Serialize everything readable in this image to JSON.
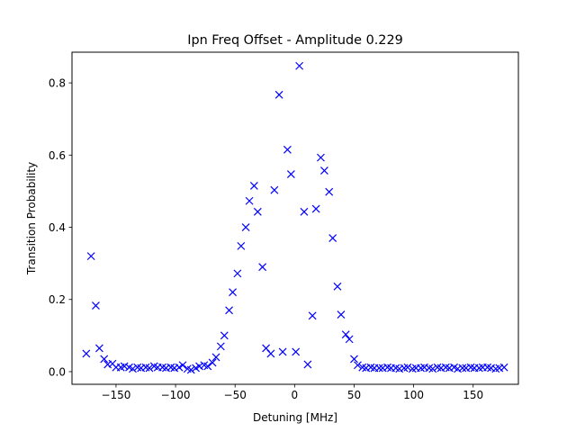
{
  "chart_data": {
    "type": "scatter",
    "title": "Ipn Freq Offset - Amplitude 0.229",
    "xlabel": "Detuning [MHz]",
    "ylabel": "Transition Probability",
    "xlim": [
      -187,
      188
    ],
    "ylim": [
      -0.035,
      0.885
    ],
    "xticks": [
      -150,
      -100,
      -50,
      0,
      50,
      100,
      150
    ],
    "xtick_labels": [
      "−150",
      "−100",
      "−50",
      "0",
      "50",
      "100",
      "150"
    ],
    "yticks": [
      0.0,
      0.2,
      0.4,
      0.6,
      0.8
    ],
    "ytick_labels": [
      "0.0",
      "0.2",
      "0.4",
      "0.6",
      "0.8"
    ],
    "grid": false,
    "marker": "x",
    "marker_color": "#0000ff",
    "series": [
      {
        "x": [
          -175,
          -171,
          -167,
          -164,
          -160,
          -157,
          -153,
          -150,
          -146,
          -143,
          -139,
          -136,
          -132,
          -129,
          -125,
          -122,
          -118,
          -115,
          -111,
          -108,
          -104,
          -101,
          -97,
          -94,
          -90,
          -87,
          -83,
          -80,
          -76,
          -73,
          -69,
          -66,
          -62,
          -59,
          -55,
          -52,
          -48,
          -45,
          -41,
          -38,
          -34,
          -31,
          -27,
          -24,
          -20,
          -17,
          -13,
          -10,
          -6,
          -3,
          1,
          4,
          8,
          11,
          15,
          18,
          22,
          25,
          29,
          32,
          36,
          39,
          43,
          46,
          50,
          53,
          57,
          60,
          64,
          67,
          71,
          74,
          78,
          81,
          85,
          88,
          92,
          95,
          99,
          102,
          106,
          109,
          113,
          116,
          120,
          123,
          127,
          130,
          134,
          137,
          141,
          144,
          148,
          151,
          155,
          158,
          162,
          165,
          169,
          172,
          176
        ],
        "y": [
          0.05,
          0.32,
          0.183,
          0.065,
          0.035,
          0.02,
          0.022,
          0.012,
          0.012,
          0.015,
          0.012,
          0.008,
          0.012,
          0.01,
          0.012,
          0.01,
          0.015,
          0.012,
          0.012,
          0.01,
          0.012,
          0.01,
          0.012,
          0.018,
          0.008,
          0.005,
          0.01,
          0.015,
          0.018,
          0.015,
          0.025,
          0.04,
          0.07,
          0.1,
          0.17,
          0.22,
          0.272,
          0.348,
          0.4,
          0.473,
          0.515,
          0.443,
          0.29,
          0.065,
          0.05,
          0.503,
          0.767,
          0.055,
          0.615,
          0.547,
          0.055,
          0.847,
          0.443,
          0.02,
          0.155,
          0.451,
          0.593,
          0.557,
          0.498,
          0.37,
          0.236,
          0.158,
          0.103,
          0.09,
          0.035,
          0.018,
          0.012,
          0.01,
          0.012,
          0.01,
          0.01,
          0.01,
          0.012,
          0.01,
          0.01,
          0.008,
          0.01,
          0.012,
          0.008,
          0.01,
          0.01,
          0.012,
          0.01,
          0.008,
          0.012,
          0.01,
          0.012,
          0.01,
          0.012,
          0.008,
          0.01,
          0.01,
          0.012,
          0.01,
          0.01,
          0.012,
          0.012,
          0.01,
          0.008,
          0.01,
          0.012
        ]
      }
    ]
  }
}
